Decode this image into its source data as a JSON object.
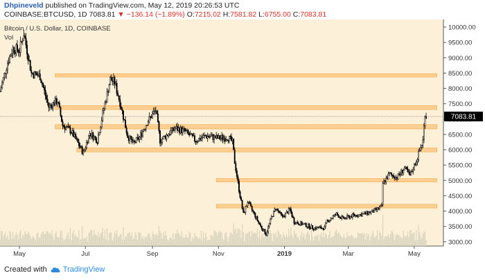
{
  "header": {
    "user": "Dhpineveld",
    "published_text": "published on TradingView.com, May 12, 2019 20:26:53 UTC",
    "symbol": "COINBASE:BTCUSD, 1D",
    "last_price": "7083.81",
    "change": "▼ −136.14 (−1.89%)",
    "open_label": "O:",
    "open": "7215.02",
    "high_label": "H:",
    "high": "7581.82",
    "low_label": "L:",
    "low": "6755.00",
    "close_label": "C:",
    "close": "7083.81"
  },
  "footer": {
    "created_with": "Created with",
    "brand": "TradingView"
  },
  "colors": {
    "plot_bg": "#fdf0d9",
    "zone": "#fbc984",
    "candle": "#000000",
    "volume": "#d8d4bd",
    "price_tag": "#000000"
  },
  "chart_data": {
    "type": "candlestick",
    "title": "Bitcoin / U.S. Dollar, 1D, COINBASE",
    "volume_label": "Vol",
    "x_labels": [
      "May",
      "Jul",
      "Sep",
      "Nov",
      "2019",
      "Mar",
      "May"
    ],
    "x_label_dates": [
      "2018-05-01",
      "2018-07-01",
      "2018-09-01",
      "2018-11-01",
      "2019-01-01",
      "2019-03-01",
      "2019-05-01"
    ],
    "y_ticks": [
      3000,
      3500,
      4000,
      4500,
      5000,
      5500,
      6000,
      6500,
      7000,
      7500,
      8000,
      8500,
      9000,
      9500,
      10000
    ],
    "y_tick_labels": [
      "3000.00",
      "3500.00",
      "4000.00",
      "4500.00",
      "5000.00",
      "5500.00",
      "6000.00",
      "6500.00",
      "7000.00",
      "7500.00",
      "8000.00",
      "8500.00",
      "9000.00",
      "9500.00",
      "10000.00"
    ],
    "ylim": [
      2860,
      10250
    ],
    "xlim": [
      "2018-04-13",
      "2019-05-28"
    ],
    "current_price": 7083.81,
    "current_price_label": "7083.81",
    "zones": [
      {
        "from": "2018-06-03",
        "to": "2019-05-22",
        "low": 8370,
        "high": 8480
      },
      {
        "from": "2018-06-03",
        "to": "2019-05-22",
        "low": 7310,
        "high": 7440
      },
      {
        "from": "2018-06-03",
        "to": "2019-05-22",
        "low": 6680,
        "high": 6820
      },
      {
        "from": "2018-06-23",
        "to": "2019-05-22",
        "low": 5930,
        "high": 6060
      },
      {
        "from": "2018-10-30",
        "to": "2019-05-22",
        "low": 4950,
        "high": 5060
      },
      {
        "from": "2018-10-30",
        "to": "2019-05-22",
        "low": 4100,
        "high": 4220
      }
    ],
    "series": [
      {
        "date": "2018-04-13",
        "close": 7900
      },
      {
        "date": "2018-04-20",
        "close": 8850
      },
      {
        "date": "2018-04-25",
        "close": 9300
      },
      {
        "date": "2018-05-01",
        "close": 9250
      },
      {
        "date": "2018-05-05",
        "close": 9800
      },
      {
        "date": "2018-05-12",
        "close": 8500
      },
      {
        "date": "2018-05-20",
        "close": 8400
      },
      {
        "date": "2018-05-28",
        "close": 7400
      },
      {
        "date": "2018-06-05",
        "close": 7600
      },
      {
        "date": "2018-06-10",
        "close": 6800
      },
      {
        "date": "2018-06-18",
        "close": 6600
      },
      {
        "date": "2018-06-25",
        "close": 6150
      },
      {
        "date": "2018-06-29",
        "close": 5900
      },
      {
        "date": "2018-07-05",
        "close": 6550
      },
      {
        "date": "2018-07-12",
        "close": 6300
      },
      {
        "date": "2018-07-18",
        "close": 7350
      },
      {
        "date": "2018-07-24",
        "close": 8300
      },
      {
        "date": "2018-07-28",
        "close": 8200
      },
      {
        "date": "2018-08-03",
        "close": 7400
      },
      {
        "date": "2018-08-09",
        "close": 6450
      },
      {
        "date": "2018-08-14",
        "close": 6200
      },
      {
        "date": "2018-08-20",
        "close": 6400
      },
      {
        "date": "2018-08-27",
        "close": 6900
      },
      {
        "date": "2018-09-04",
        "close": 7300
      },
      {
        "date": "2018-09-08",
        "close": 6300
      },
      {
        "date": "2018-09-15",
        "close": 6500
      },
      {
        "date": "2018-09-22",
        "close": 6700
      },
      {
        "date": "2018-10-01",
        "close": 6600
      },
      {
        "date": "2018-10-11",
        "close": 6300
      },
      {
        "date": "2018-10-20",
        "close": 6450
      },
      {
        "date": "2018-11-01",
        "close": 6380
      },
      {
        "date": "2018-11-10",
        "close": 6400
      },
      {
        "date": "2018-11-14",
        "close": 6250
      },
      {
        "date": "2018-11-16",
        "close": 5600
      },
      {
        "date": "2018-11-20",
        "close": 4700
      },
      {
        "date": "2018-11-24",
        "close": 3900
      },
      {
        "date": "2018-11-28",
        "close": 4300
      },
      {
        "date": "2018-12-04",
        "close": 3900
      },
      {
        "date": "2018-12-10",
        "close": 3500
      },
      {
        "date": "2018-12-15",
        "close": 3250
      },
      {
        "date": "2018-12-20",
        "close": 3800
      },
      {
        "date": "2018-12-24",
        "close": 4100
      },
      {
        "date": "2018-12-30",
        "close": 3800
      },
      {
        "date": "2019-01-06",
        "close": 4050
      },
      {
        "date": "2019-01-10",
        "close": 3650
      },
      {
        "date": "2019-01-20",
        "close": 3550
      },
      {
        "date": "2019-01-28",
        "close": 3450
      },
      {
        "date": "2019-02-07",
        "close": 3450
      },
      {
        "date": "2019-02-09",
        "close": 3650
      },
      {
        "date": "2019-02-18",
        "close": 3900
      },
      {
        "date": "2019-02-24",
        "close": 3750
      },
      {
        "date": "2019-03-05",
        "close": 3850
      },
      {
        "date": "2019-03-15",
        "close": 3900
      },
      {
        "date": "2019-03-25",
        "close": 4000
      },
      {
        "date": "2019-04-01",
        "close": 4150
      },
      {
        "date": "2019-04-02",
        "close": 4900
      },
      {
        "date": "2019-04-08",
        "close": 5200
      },
      {
        "date": "2019-04-15",
        "close": 5100
      },
      {
        "date": "2019-04-22",
        "close": 5400
      },
      {
        "date": "2019-04-27",
        "close": 5150
      },
      {
        "date": "2019-05-03",
        "close": 5650
      },
      {
        "date": "2019-05-09",
        "close": 6300
      },
      {
        "date": "2019-05-11",
        "close": 7200
      },
      {
        "date": "2019-05-12",
        "close": 7083.81
      }
    ]
  }
}
